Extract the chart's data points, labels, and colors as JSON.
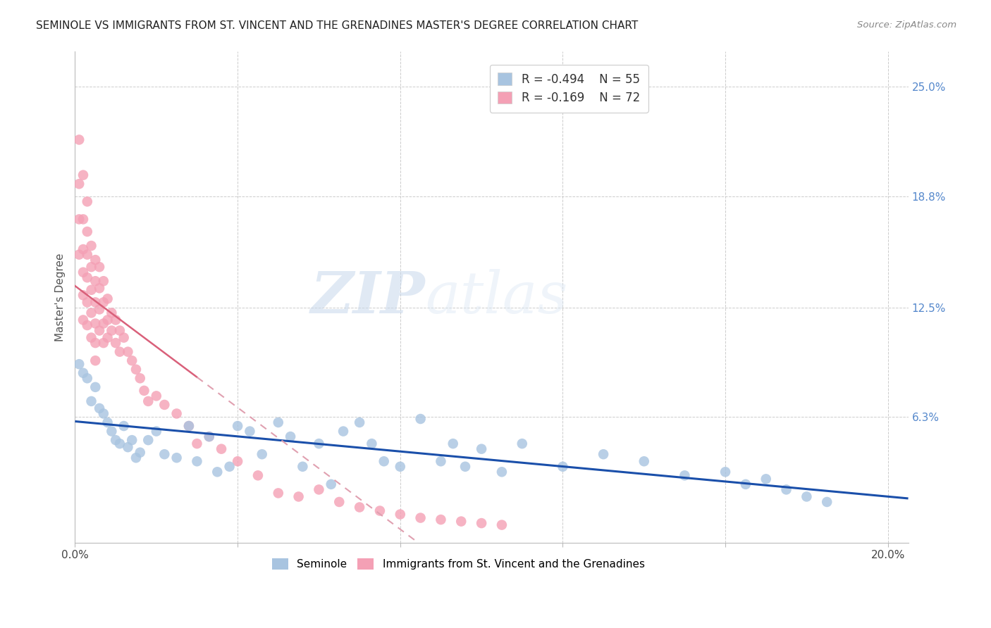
{
  "title": "SEMINOLE VS IMMIGRANTS FROM ST. VINCENT AND THE GRENADINES MASTER'S DEGREE CORRELATION CHART",
  "source": "Source: ZipAtlas.com",
  "ylabel": "Master's Degree",
  "y_tick_vals": [
    0.0,
    0.063,
    0.125,
    0.188,
    0.25
  ],
  "y_tick_labels": [
    "",
    "6.3%",
    "12.5%",
    "18.8%",
    "25.0%"
  ],
  "x_range": [
    0.0,
    0.205
  ],
  "y_range": [
    -0.008,
    0.27
  ],
  "legend_r1": "R = -0.494",
  "legend_n1": "N = 55",
  "legend_r2": "R = -0.169",
  "legend_n2": "N = 72",
  "watermark_zip": "ZIP",
  "watermark_atlas": "atlas",
  "blue_color": "#a8c4e0",
  "pink_color": "#f4a0b5",
  "line_blue": "#1a4faa",
  "line_pink": "#d9607a",
  "line_pink_dashed_color": "#e0a0b0",
  "seminole_x": [
    0.001,
    0.002,
    0.003,
    0.004,
    0.005,
    0.006,
    0.007,
    0.008,
    0.009,
    0.01,
    0.011,
    0.012,
    0.013,
    0.014,
    0.015,
    0.016,
    0.018,
    0.02,
    0.022,
    0.025,
    0.028,
    0.03,
    0.033,
    0.035,
    0.038,
    0.04,
    0.043,
    0.046,
    0.05,
    0.053,
    0.056,
    0.06,
    0.063,
    0.066,
    0.07,
    0.073,
    0.076,
    0.08,
    0.085,
    0.09,
    0.093,
    0.096,
    0.1,
    0.105,
    0.11,
    0.12,
    0.13,
    0.14,
    0.15,
    0.16,
    0.165,
    0.17,
    0.175,
    0.18,
    0.185
  ],
  "seminole_y": [
    0.093,
    0.088,
    0.085,
    0.072,
    0.08,
    0.068,
    0.065,
    0.06,
    0.055,
    0.05,
    0.048,
    0.058,
    0.046,
    0.05,
    0.04,
    0.043,
    0.05,
    0.055,
    0.042,
    0.04,
    0.058,
    0.038,
    0.052,
    0.032,
    0.035,
    0.058,
    0.055,
    0.042,
    0.06,
    0.052,
    0.035,
    0.048,
    0.025,
    0.055,
    0.06,
    0.048,
    0.038,
    0.035,
    0.062,
    0.038,
    0.048,
    0.035,
    0.045,
    0.032,
    0.048,
    0.035,
    0.042,
    0.038,
    0.03,
    0.032,
    0.025,
    0.028,
    0.022,
    0.018,
    0.015
  ],
  "immigrants_x": [
    0.001,
    0.001,
    0.001,
    0.001,
    0.002,
    0.002,
    0.002,
    0.002,
    0.002,
    0.002,
    0.003,
    0.003,
    0.003,
    0.003,
    0.003,
    0.003,
    0.004,
    0.004,
    0.004,
    0.004,
    0.004,
    0.005,
    0.005,
    0.005,
    0.005,
    0.005,
    0.005,
    0.006,
    0.006,
    0.006,
    0.006,
    0.007,
    0.007,
    0.007,
    0.007,
    0.008,
    0.008,
    0.008,
    0.009,
    0.009,
    0.01,
    0.01,
    0.011,
    0.011,
    0.012,
    0.013,
    0.014,
    0.015,
    0.016,
    0.017,
    0.018,
    0.02,
    0.022,
    0.025,
    0.028,
    0.03,
    0.033,
    0.036,
    0.04,
    0.045,
    0.05,
    0.055,
    0.06,
    0.065,
    0.07,
    0.075,
    0.08,
    0.085,
    0.09,
    0.095,
    0.1,
    0.105
  ],
  "immigrants_y": [
    0.22,
    0.195,
    0.175,
    0.155,
    0.2,
    0.175,
    0.158,
    0.145,
    0.132,
    0.118,
    0.185,
    0.168,
    0.155,
    0.142,
    0.128,
    0.115,
    0.16,
    0.148,
    0.135,
    0.122,
    0.108,
    0.152,
    0.14,
    0.128,
    0.116,
    0.105,
    0.095,
    0.148,
    0.136,
    0.124,
    0.112,
    0.14,
    0.128,
    0.116,
    0.105,
    0.13,
    0.118,
    0.108,
    0.122,
    0.112,
    0.118,
    0.105,
    0.112,
    0.1,
    0.108,
    0.1,
    0.095,
    0.09,
    0.085,
    0.078,
    0.072,
    0.075,
    0.07,
    0.065,
    0.058,
    0.048,
    0.052,
    0.045,
    0.038,
    0.03,
    0.02,
    0.018,
    0.022,
    0.015,
    0.012,
    0.01,
    0.008,
    0.006,
    0.005,
    0.004,
    0.003,
    0.002
  ]
}
